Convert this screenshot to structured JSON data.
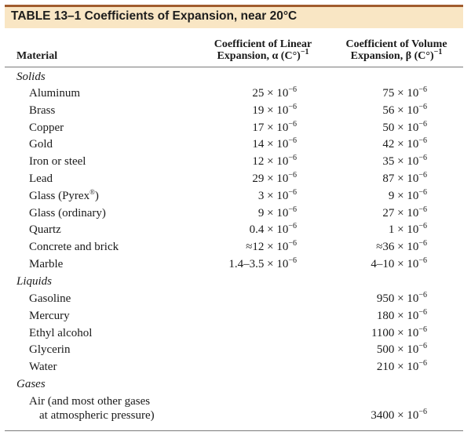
{
  "title": "TABLE 13–1 Coefficients of Expansion, near 20°C",
  "headers": {
    "material": "Material",
    "linear_l1": "Coefficient of Linear",
    "linear_l2": "Expansion, α (C°)",
    "volume_l1": "Coefficient of Volume",
    "volume_l2": "Expansion, β (C°)",
    "power": "−1"
  },
  "exponent": "−6",
  "times_ten": " × 10",
  "categories": {
    "solids": "Solids",
    "liquids": "Liquids",
    "gases": "Gases"
  },
  "solids": [
    {
      "name": "Aluminum",
      "linear": "25",
      "volume": "75"
    },
    {
      "name": "Brass",
      "linear": "19",
      "volume": "56"
    },
    {
      "name": "Copper",
      "linear": "17",
      "volume": "50"
    },
    {
      "name": "Gold",
      "linear": "14",
      "volume": "42"
    },
    {
      "name": "Iron or steel",
      "linear": "12",
      "volume": "35"
    },
    {
      "name": "Lead",
      "linear": "29",
      "volume": "87"
    },
    {
      "name": "Glass (Pyrex",
      "name_reg": "®",
      "name_tail": ")",
      "linear": "3",
      "volume": "9"
    },
    {
      "name": "Glass (ordinary)",
      "linear": "9",
      "volume": "27"
    },
    {
      "name": "Quartz",
      "linear": "0.4",
      "volume": "1"
    },
    {
      "name": "Concrete and brick",
      "linear": "≈12",
      "volume": "≈36"
    },
    {
      "name": "Marble",
      "linear": "1.4–3.5",
      "volume": "4–10"
    }
  ],
  "liquids": [
    {
      "name": "Gasoline",
      "volume": "950"
    },
    {
      "name": "Mercury",
      "volume": "180"
    },
    {
      "name": "Ethyl alcohol",
      "volume": "1100"
    },
    {
      "name": "Glycerin",
      "volume": "500"
    },
    {
      "name": "Water",
      "volume": "210"
    }
  ],
  "gases": [
    {
      "name_l1": "Air (and most other gases",
      "name_l2": "at atmospheric pressure)",
      "volume": "3400"
    }
  ]
}
